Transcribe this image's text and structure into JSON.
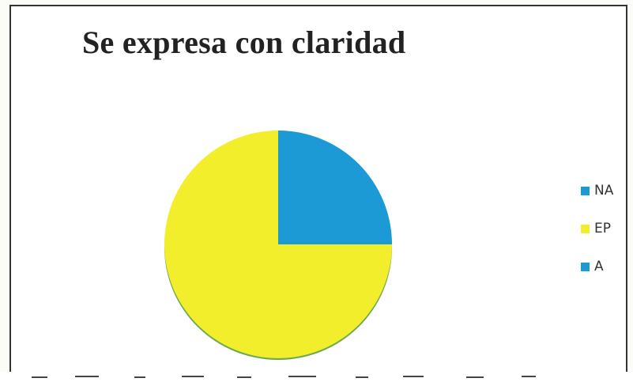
{
  "chart_data": {
    "type": "pie",
    "title": "Se expresa con claridad",
    "categories": [
      "NA",
      "EP",
      "A"
    ],
    "values": [
      25,
      75,
      0
    ],
    "colors": [
      "#1b9ad6",
      "#f2ee2c",
      "#1b9ad6"
    ],
    "legend": "right"
  }
}
